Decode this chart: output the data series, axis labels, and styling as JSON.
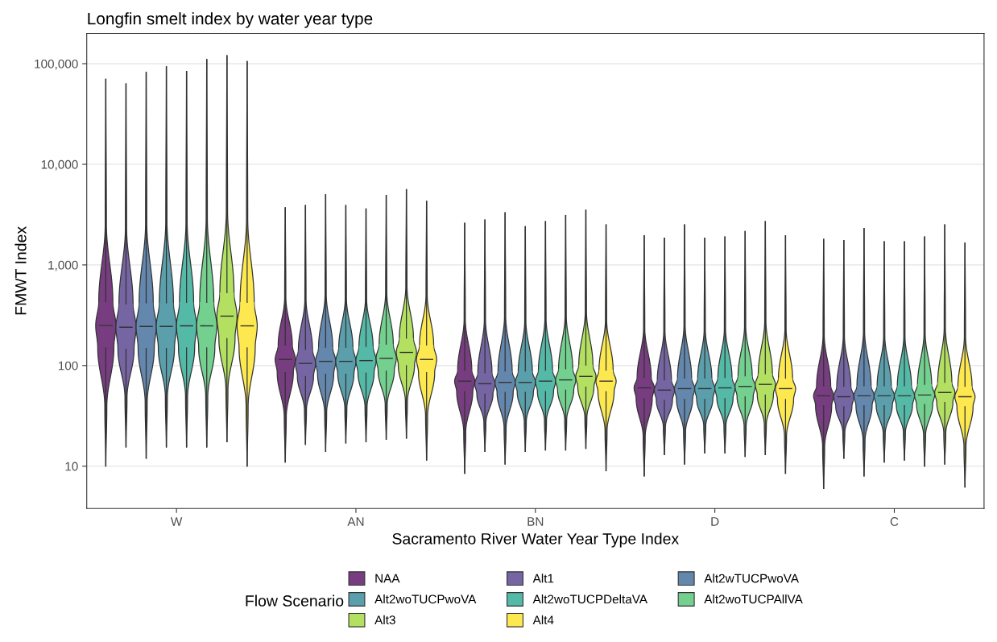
{
  "chart_data": {
    "type": "box",
    "title": "Longfin smelt index by water year type",
    "xlabel": "Sacramento River Water Year Type Index",
    "ylabel": "FMWT Index",
    "legend_title": "Flow Scenario",
    "categories": [
      "W",
      "AN",
      "BN",
      "D",
      "C"
    ],
    "log": true,
    "ylim": [
      3.8,
      200000
    ],
    "yticks": [
      {
        "value": 10,
        "label": "10"
      },
      {
        "value": 100,
        "label": "100"
      },
      {
        "value": 1000,
        "label": "1,000"
      },
      {
        "value": 10000,
        "label": "10,000"
      },
      {
        "value": 100000,
        "label": "100,000"
      }
    ],
    "grid": "y",
    "legend": "bottom",
    "series": [
      {
        "name": "NAA",
        "color": "#773d80",
        "boxes": [
          {
            "low": 10,
            "q1": 150,
            "median": 250,
            "q3": 430,
            "high": 70000
          },
          {
            "low": 11,
            "q1": 85,
            "median": 115,
            "q3": 160,
            "high": 3700
          },
          {
            "low": 8.5,
            "q1": 55,
            "median": 70,
            "q3": 90,
            "high": 2600
          },
          {
            "low": 8,
            "q1": 47,
            "median": 60,
            "q3": 76,
            "high": 1950
          },
          {
            "low": 6,
            "q1": 40,
            "median": 50,
            "q3": 63,
            "high": 1800
          }
        ]
      },
      {
        "name": "Alt1",
        "color": "#7665a3",
        "boxes": [
          {
            "low": 15.5,
            "q1": 145,
            "median": 240,
            "q3": 410,
            "high": 63000
          },
          {
            "low": 16.5,
            "q1": 78,
            "median": 105,
            "q3": 145,
            "high": 3900
          },
          {
            "low": 14,
            "q1": 52,
            "median": 66,
            "q3": 85,
            "high": 2800
          },
          {
            "low": 13,
            "q1": 45,
            "median": 57,
            "q3": 72,
            "high": 1850
          },
          {
            "low": 12,
            "q1": 39,
            "median": 49,
            "q3": 62,
            "high": 1750
          }
        ]
      },
      {
        "name": "Alt2wTUCPwoVA",
        "color": "#6487ad",
        "boxes": [
          {
            "low": 12,
            "q1": 148,
            "median": 245,
            "q3": 420,
            "high": 82000
          },
          {
            "low": 14,
            "q1": 82,
            "median": 110,
            "q3": 152,
            "high": 5000
          },
          {
            "low": 10.5,
            "q1": 54,
            "median": 68,
            "q3": 88,
            "high": 3300
          },
          {
            "low": 10.5,
            "q1": 46,
            "median": 59,
            "q3": 75,
            "high": 2500
          },
          {
            "low": 8,
            "q1": 40,
            "median": 50,
            "q3": 63,
            "high": 2300
          }
        ]
      },
      {
        "name": "Alt2woTUCPwoVA",
        "color": "#5a9fab",
        "boxes": [
          {
            "low": 15.5,
            "q1": 148,
            "median": 245,
            "q3": 420,
            "high": 93000
          },
          {
            "low": 17,
            "q1": 82,
            "median": 110,
            "q3": 152,
            "high": 3900
          },
          {
            "low": 14,
            "q1": 54,
            "median": 68,
            "q3": 88,
            "high": 2400
          },
          {
            "low": 13.5,
            "q1": 46,
            "median": 59,
            "q3": 75,
            "high": 1850
          },
          {
            "low": 11,
            "q1": 40,
            "median": 50,
            "q3": 63,
            "high": 1700
          }
        ]
      },
      {
        "name": "Alt2woTUCPDeltaVA",
        "color": "#55b9a7",
        "boxes": [
          {
            "low": 15.5,
            "q1": 150,
            "median": 248,
            "q3": 425,
            "high": 84000
          },
          {
            "low": 17.5,
            "q1": 84,
            "median": 112,
            "q3": 155,
            "high": 3600
          },
          {
            "low": 14.5,
            "q1": 55,
            "median": 70,
            "q3": 90,
            "high": 2700
          },
          {
            "low": 13.5,
            "q1": 47,
            "median": 60,
            "q3": 76,
            "high": 1900
          },
          {
            "low": 11.5,
            "q1": 40,
            "median": 50,
            "q3": 63,
            "high": 1700
          }
        ]
      },
      {
        "name": "Alt2woTUCPAllVA",
        "color": "#74d08f",
        "boxes": [
          {
            "low": 15.5,
            "q1": 150,
            "median": 248,
            "q3": 425,
            "high": 110000
          },
          {
            "low": 18.5,
            "q1": 88,
            "median": 118,
            "q3": 163,
            "high": 4900
          },
          {
            "low": 14.5,
            "q1": 57,
            "median": 72,
            "q3": 93,
            "high": 3100
          },
          {
            "low": 12.5,
            "q1": 49,
            "median": 62,
            "q3": 79,
            "high": 2150
          },
          {
            "low": 10,
            "q1": 41,
            "median": 51,
            "q3": 65,
            "high": 1900
          }
        ]
      },
      {
        "name": "Alt3",
        "color": "#b3e061",
        "boxes": [
          {
            "low": 17.5,
            "q1": 185,
            "median": 310,
            "q3": 530,
            "high": 120000
          },
          {
            "low": 19,
            "q1": 100,
            "median": 135,
            "q3": 187,
            "high": 5600
          },
          {
            "low": 15,
            "q1": 61,
            "median": 78,
            "q3": 101,
            "high": 3500
          },
          {
            "low": 13,
            "q1": 51,
            "median": 65,
            "q3": 83,
            "high": 2700
          },
          {
            "low": 10.5,
            "q1": 43,
            "median": 54,
            "q3": 68,
            "high": 2500
          }
        ]
      },
      {
        "name": "Alt4",
        "color": "#fde94f",
        "boxes": [
          {
            "low": 10,
            "q1": 150,
            "median": 248,
            "q3": 425,
            "high": 105000
          },
          {
            "low": 11.5,
            "q1": 85,
            "median": 115,
            "q3": 160,
            "high": 4300
          },
          {
            "low": 9,
            "q1": 55,
            "median": 70,
            "q3": 90,
            "high": 2500
          },
          {
            "low": 8.5,
            "q1": 46,
            "median": 59,
            "q3": 75,
            "high": 1950
          },
          {
            "low": 6.2,
            "q1": 39,
            "median": 49,
            "q3": 62,
            "high": 1650
          }
        ]
      }
    ]
  }
}
